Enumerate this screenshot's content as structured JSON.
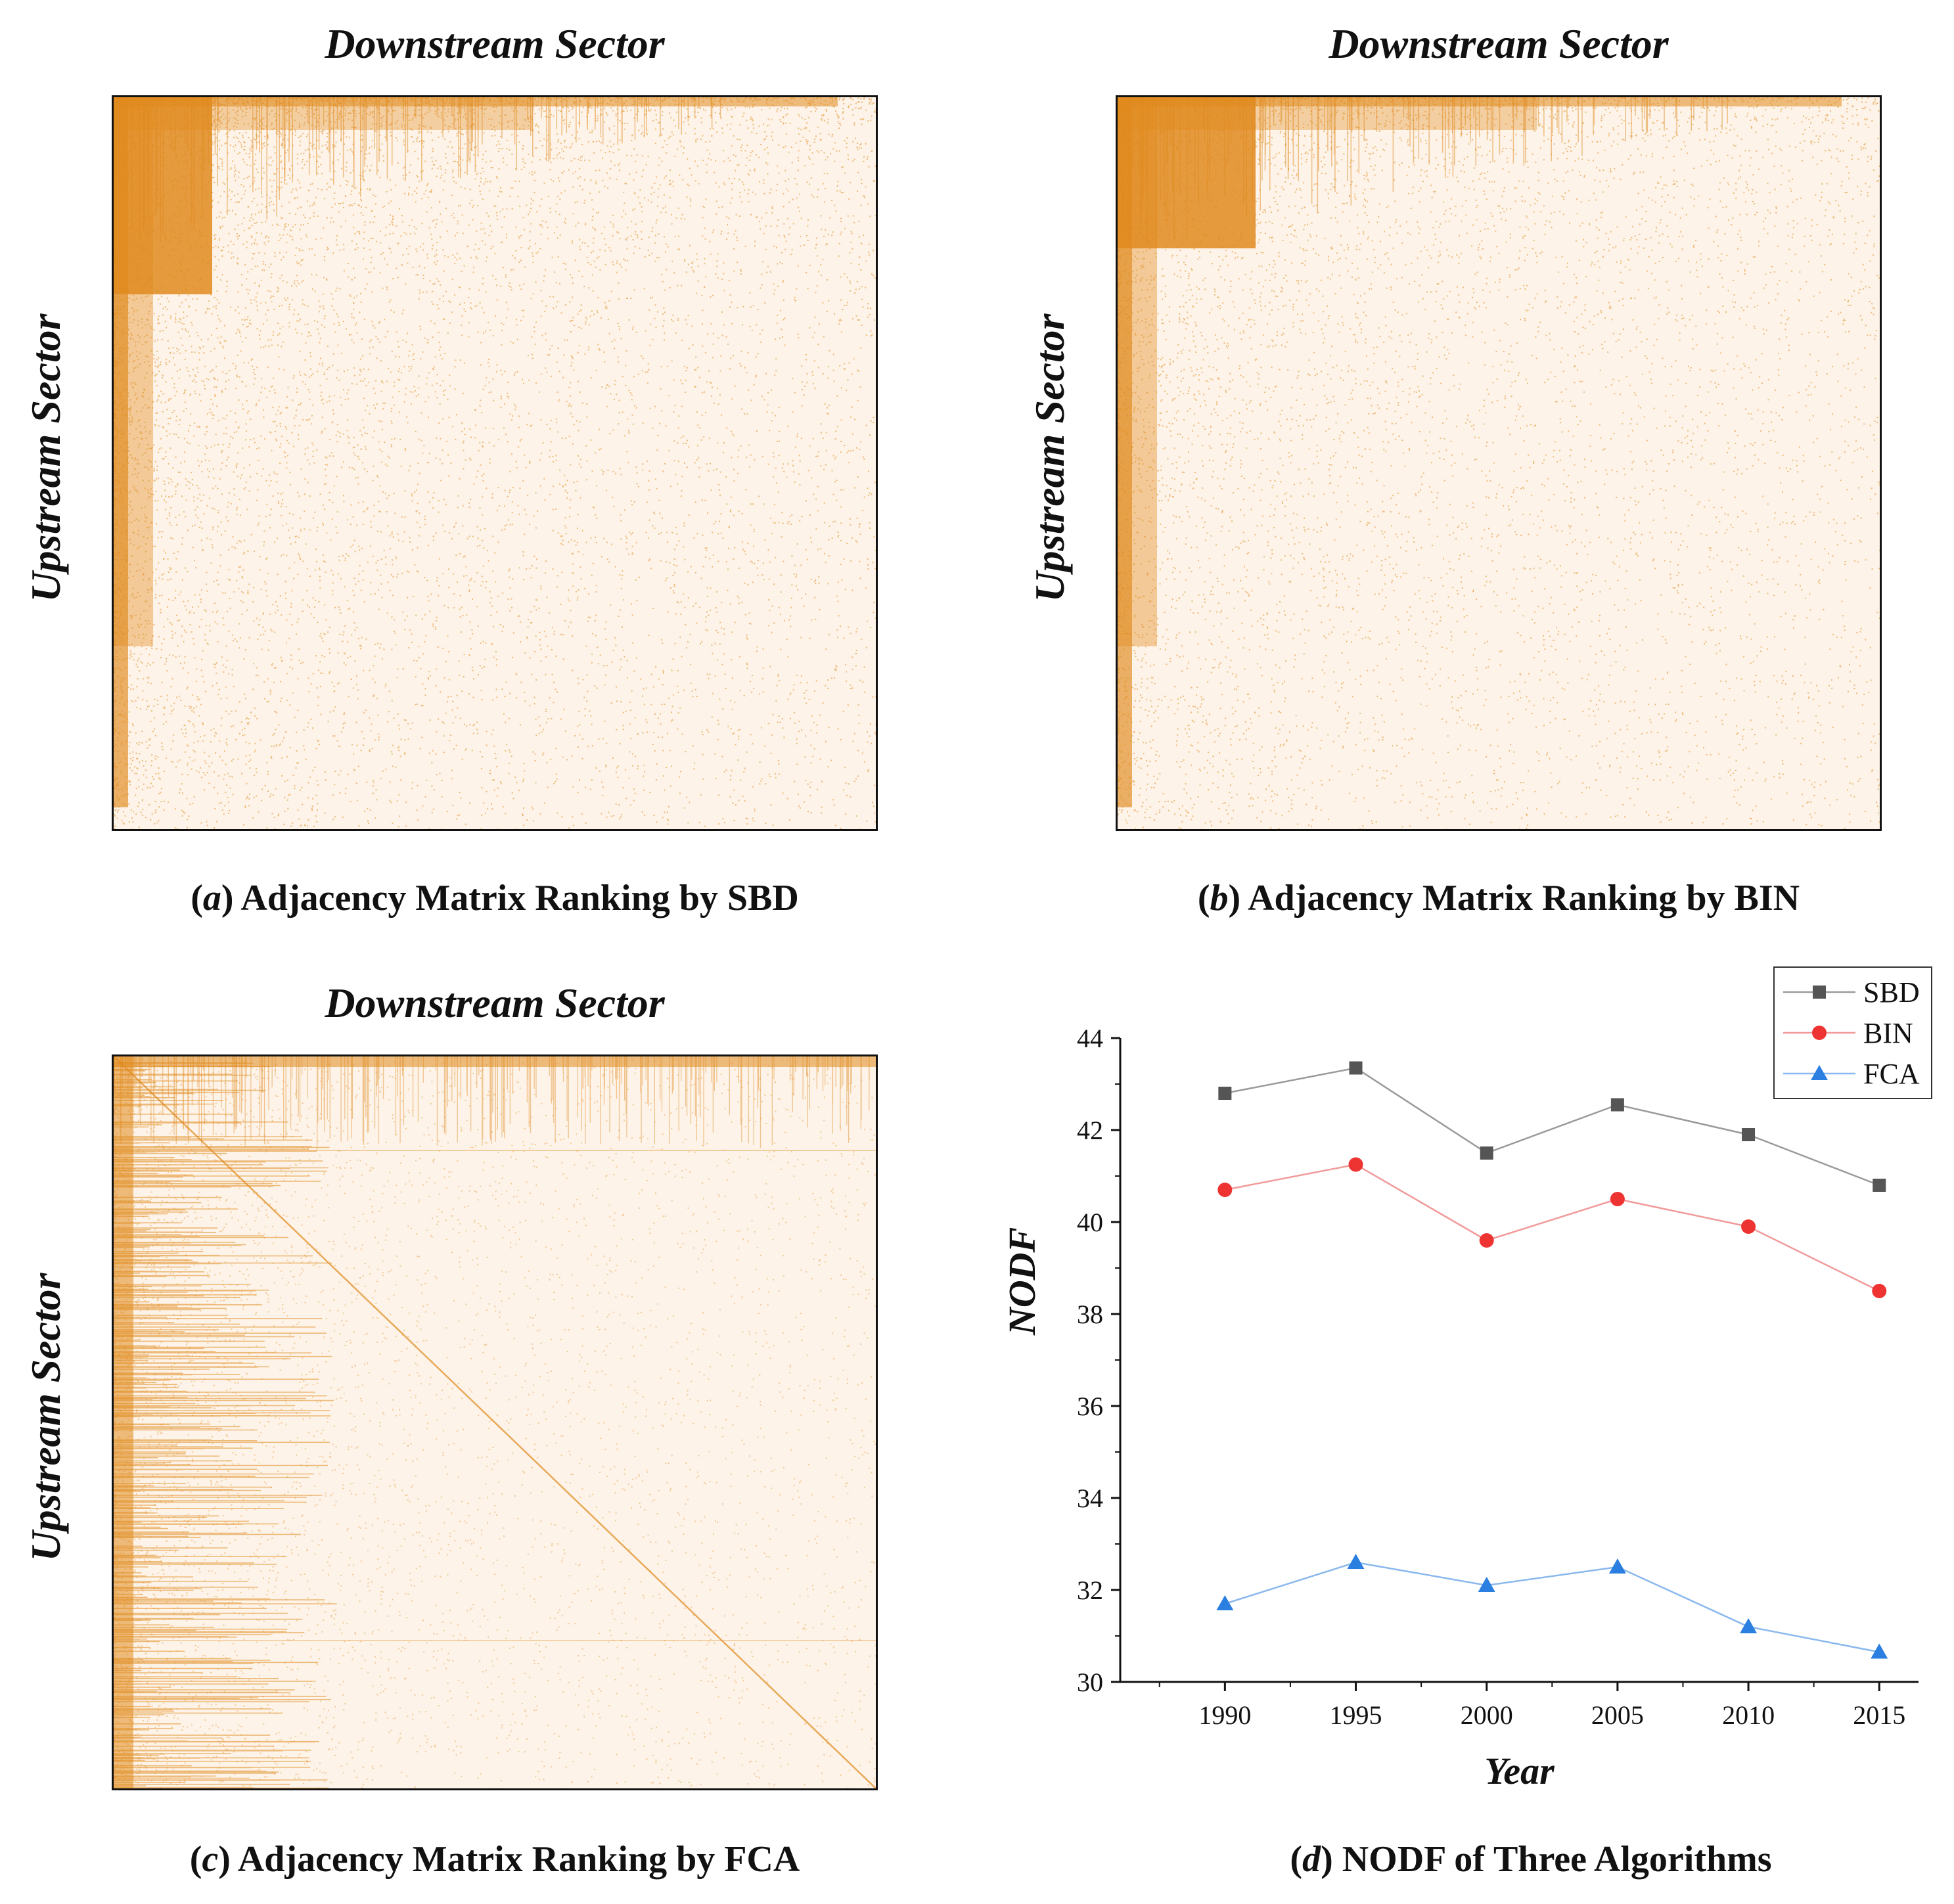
{
  "panels": {
    "a": {
      "top_label": "Downstream Sector",
      "side_label": "Upstream Sector",
      "caption_letter": "a",
      "caption_text": " Adjacency Matrix Ranking by SBD"
    },
    "b": {
      "top_label": "Downstream Sector",
      "side_label": "Upstream Sector",
      "caption_letter": "b",
      "caption_text": " Adjacency Matrix Ranking by BIN"
    },
    "c": {
      "top_label": "Downstream Sector",
      "side_label": "Upstream Sector",
      "caption_letter": "c",
      "caption_text": " Adjacency Matrix Ranking by FCA"
    },
    "d": {
      "caption_letter": "d",
      "caption_text": " NODF of Three Algorithms"
    }
  },
  "colors": {
    "matrix_fill": "#e08a1e",
    "matrix_bg": "#fdf3e8",
    "sbd": "#555555",
    "bin": "#ee3333",
    "fca": "#2b7fe0"
  },
  "chart_data": {
    "type": "line",
    "title": "NODF of Three Algorithms",
    "xlabel": "Year",
    "ylabel": "NODF",
    "x": [
      1990,
      1995,
      2000,
      2005,
      2010,
      2015
    ],
    "xticks": [
      "1990",
      "1995",
      "2000",
      "2005",
      "2010",
      "2015"
    ],
    "yticks": [
      "30",
      "32",
      "34",
      "36",
      "38",
      "40",
      "42",
      "44"
    ],
    "ylim": [
      30,
      44
    ],
    "xlim": [
      1986,
      2016.5
    ],
    "legend_position": "top-right",
    "series": [
      {
        "name": "SBD",
        "marker": "square",
        "values": [
          42.8,
          43.35,
          41.5,
          42.55,
          41.9,
          40.8
        ]
      },
      {
        "name": "BIN",
        "marker": "circle",
        "values": [
          40.7,
          41.25,
          39.6,
          40.5,
          39.9,
          38.5
        ]
      },
      {
        "name": "FCA",
        "marker": "triangle",
        "values": [
          31.7,
          32.6,
          32.1,
          32.5,
          31.2,
          30.65
        ]
      }
    ]
  }
}
